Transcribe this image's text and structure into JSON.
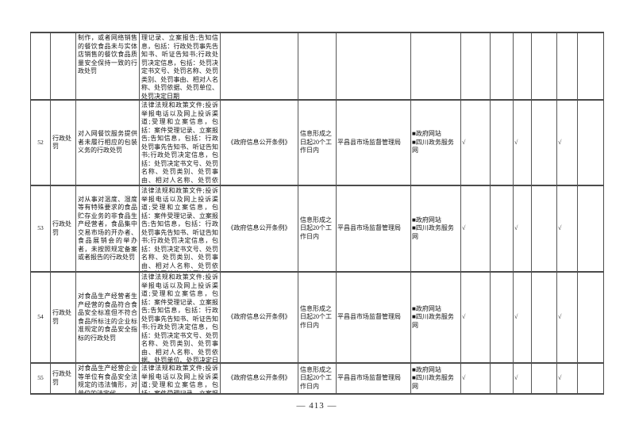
{
  "document": {
    "page_number": "— 413 —"
  },
  "colors": {
    "page_bg": "#ffffff",
    "text": "#161616",
    "grid_line": "#4b4b4b"
  },
  "table": {
    "rows": [
      {
        "no": "",
        "category": "",
        "item": "制作，或者网络销售的餐饮食品未与实体店销售的餐饮食品质量安全保持一致的行政处罚",
        "content": "理记录、立案报告;告知信息，包括：行政处罚事先告知书、听证告知书;行政处罚决定信息，包括：处罚决定书文号、处罚名称、处罚类别、处罚事由、相对人名称、处罚依据、处罚单位、处罚决定日期",
        "basis": "",
        "time_limit": "",
        "agency": "",
        "channels": "",
        "checks": [
          "",
          "",
          "",
          "",
          "",
          ""
        ]
      },
      {
        "no": "52",
        "category": "行政处罚",
        "item": "对入网餐饮服务提供者未履行相应的包装义务的行政处罚",
        "content": "法律法规和政策文件;投诉举报电话以及网上投诉渠道;受理和立案信息，包括：案件受理记录、立案报告;告知信息，包括：行政处罚事先告知书、听证告知书;行政处罚决定信息，包括：处罚决定书文号、处罚名称、处罚类别、处罚事由、相对人名称、处罚依据、处罚单位、处罚决定日期",
        "basis": "《政府信息公开条例》",
        "time_limit": "信息形成之日起20个工作日内",
        "agency": "平昌县市场监督管理局",
        "channels": "■政府网站\n■四川政务服务网",
        "checks": [
          "√",
          "",
          "√",
          "",
          "√",
          ""
        ]
      },
      {
        "no": "53",
        "category": "行政处罚",
        "item": "对从事对温度、湿度等有特殊要求的食品贮存业务的非食品生产经营者，食品集中交易市场的开办者、食品展销会的举办者，未按照规定备案或者报告的行政处罚",
        "content": "法律法规和政策文件;投诉举报电话以及网上投诉渠道;受理和立案信息，包括：案件受理记录、立案报告;告知信息，包括：行政处罚事先告知书、听证告知书;行政处罚决定信息，包括：处罚决定书文号、处罚名称、处罚类别、处罚事由、相对人名称、处罚依据、处罚单位、处罚决定日期",
        "basis": "《政府信息公开条例》",
        "time_limit": "信息形成之日起20个工作日内",
        "agency": "平昌县市场监督管理局",
        "channels": "■政府网站\n■四川政务服务网",
        "checks": [
          "√",
          "",
          "√",
          "",
          "√",
          ""
        ]
      },
      {
        "no": "54",
        "category": "行政处罚",
        "item": "对食品生产经营者生产经营的食品符合食品安全标准但不符合食品所标注的企业标准规定的食品安全指标的行政处罚",
        "content": "法律法规和政策文件;投诉举报电话以及网上投诉渠道;受理和立案信息，包括：案件受理记录、立案报告;告知信息，包括：行政处罚事先告知书、听证告知书;行政处罚决定信息，包括：处罚决定书文号、处罚名称、处罚类别、处罚事由、相对人名称、处罚依据、处罚单位、处罚决定日期",
        "basis": "《政府信息公开条例》",
        "time_limit": "信息形成之日起20个工作日内",
        "agency": "平昌县市场监督管理局",
        "channels": "■政府网站\n■四川政务服务网",
        "checks": [
          "√",
          "",
          "√",
          "",
          "√",
          ""
        ]
      },
      {
        "no": "55",
        "category": "行政处罚",
        "item": "对食品生产经营企业等单位有食品安全法规定的违法情形，对单位的法定代",
        "content": "法律法规和政策文件;投诉举报电话以及网上投诉渠道;受理和立案信息，包括：案件受理记录、立案报告;告知信息，",
        "basis": "《政府信息公开条例》",
        "time_limit": "信息形成之日起20个工作日内",
        "agency": "平昌县市场监督管理局",
        "channels": "■政府网站\n■四川政务服务网",
        "checks": [
          "√",
          "",
          "√",
          "",
          "√",
          ""
        ]
      }
    ]
  }
}
